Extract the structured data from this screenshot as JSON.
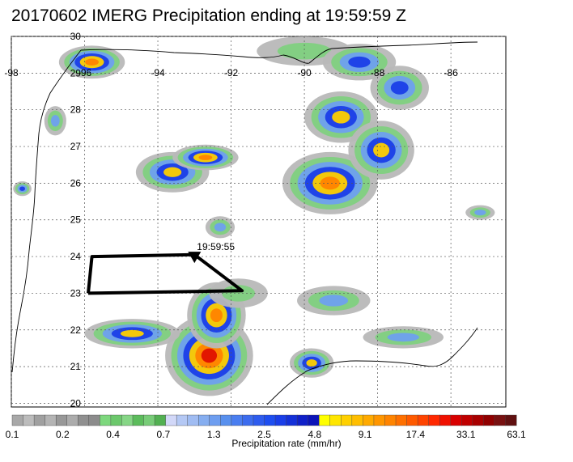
{
  "title": "20170602 IMERG Precipitation ending at 19:59:59 Z",
  "map": {
    "lon_range": [
      -98,
      -84.5
    ],
    "lat_range": [
      19.9,
      30.0
    ],
    "lon_labels": [
      "-98",
      "-96",
      "-94",
      "-92",
      "-90",
      "-88",
      "-86"
    ],
    "lat_labels": [
      "30",
      "29",
      "28",
      "27",
      "26",
      "25",
      "24",
      "23",
      "22",
      "21",
      "20"
    ],
    "gridlines": "dotted",
    "track": {
      "end_time_label": "19:59:55",
      "path": [
        [
          -95.9,
          23.0
        ],
        [
          -95.8,
          24.0
        ],
        [
          -93.0,
          24.05
        ],
        [
          -91.7,
          23.07
        ],
        [
          -95.9,
          23.0
        ]
      ],
      "arrow_at": [
        -93.0,
        24.0
      ]
    },
    "precip_cells": [
      {
        "lon": -95.8,
        "lat": 29.3,
        "rx": 0.9,
        "ry": 0.45,
        "level": 5
      },
      {
        "lon": -93.6,
        "lat": 26.3,
        "rx": 1.0,
        "ry": 0.55,
        "level": 4
      },
      {
        "lon": -92.7,
        "lat": 26.7,
        "rx": 0.9,
        "ry": 0.35,
        "level": 5
      },
      {
        "lon": -89.3,
        "lat": 26.0,
        "rx": 1.3,
        "ry": 0.85,
        "level": 5
      },
      {
        "lon": -89.0,
        "lat": 27.8,
        "rx": 1.0,
        "ry": 0.7,
        "level": 4
      },
      {
        "lon": -87.9,
        "lat": 26.9,
        "rx": 0.9,
        "ry": 0.8,
        "level": 4
      },
      {
        "lon": -87.4,
        "lat": 28.6,
        "rx": 0.8,
        "ry": 0.6,
        "level": 3
      },
      {
        "lon": -92.6,
        "lat": 21.3,
        "rx": 1.2,
        "ry": 1.1,
        "level": 6
      },
      {
        "lon": -92.4,
        "lat": 22.4,
        "rx": 0.8,
        "ry": 0.9,
        "level": 5
      },
      {
        "lon": -94.7,
        "lat": 21.9,
        "rx": 1.3,
        "ry": 0.4,
        "level": 4
      },
      {
        "lon": -89.8,
        "lat": 21.1,
        "rx": 0.6,
        "ry": 0.4,
        "level": 4
      },
      {
        "lon": -89.2,
        "lat": 22.8,
        "rx": 1.0,
        "ry": 0.4,
        "level": 2
      },
      {
        "lon": -87.3,
        "lat": 21.8,
        "rx": 1.1,
        "ry": 0.3,
        "level": 2
      },
      {
        "lon": -97.7,
        "lat": 25.85,
        "rx": 0.25,
        "ry": 0.2,
        "level": 3
      },
      {
        "lon": -90.0,
        "lat": 29.6,
        "rx": 1.3,
        "ry": 0.4,
        "level": 1
      },
      {
        "lon": -88.5,
        "lat": 29.3,
        "rx": 1.0,
        "ry": 0.5,
        "level": 3
      },
      {
        "lon": -92.3,
        "lat": 24.8,
        "rx": 0.4,
        "ry": 0.3,
        "level": 2
      },
      {
        "lon": -91.8,
        "lat": 23.0,
        "rx": 0.8,
        "ry": 0.4,
        "level": 1
      },
      {
        "lon": -85.2,
        "lat": 25.2,
        "rx": 0.4,
        "ry": 0.2,
        "level": 2
      },
      {
        "lon": -96.8,
        "lat": 27.7,
        "rx": 0.3,
        "ry": 0.4,
        "level": 2
      }
    ]
  },
  "colorbar": {
    "colors": [
      "#a8a8a8",
      "#bcbcbc",
      "#a0a0a0",
      "#b4b4b4",
      "#989898",
      "#acacac",
      "#909090",
      "#8c8c8c",
      "#7ed87e",
      "#6cc86c",
      "#86d686",
      "#5cbc5c",
      "#78cc78",
      "#52b052",
      "#d2d8f8",
      "#b4c8f4",
      "#a0bcf2",
      "#86aef0",
      "#6e9ef0",
      "#5890ee",
      "#4a7ef0",
      "#3c6cee",
      "#2e5cee",
      "#1e4ef0",
      "#1a3ee8",
      "#1430d8",
      "#1020c8",
      "#0c14b8",
      "#ffff00",
      "#ffe600",
      "#ffd000",
      "#ffbe00",
      "#ffaa00",
      "#ff9600",
      "#ff8400",
      "#ff7000",
      "#ff5a00",
      "#ff4400",
      "#ff2800",
      "#f01000",
      "#d80000",
      "#c00000",
      "#a80000",
      "#900000",
      "#781010",
      "#601010"
    ],
    "tick_labels": [
      "0.1",
      "0.2",
      "0.4",
      "0.7",
      "1.3",
      "2.5",
      "4.8",
      "9.1",
      "17.4",
      "33.1",
      "63.1"
    ],
    "title": "Precipitation rate (mm/hr)"
  }
}
